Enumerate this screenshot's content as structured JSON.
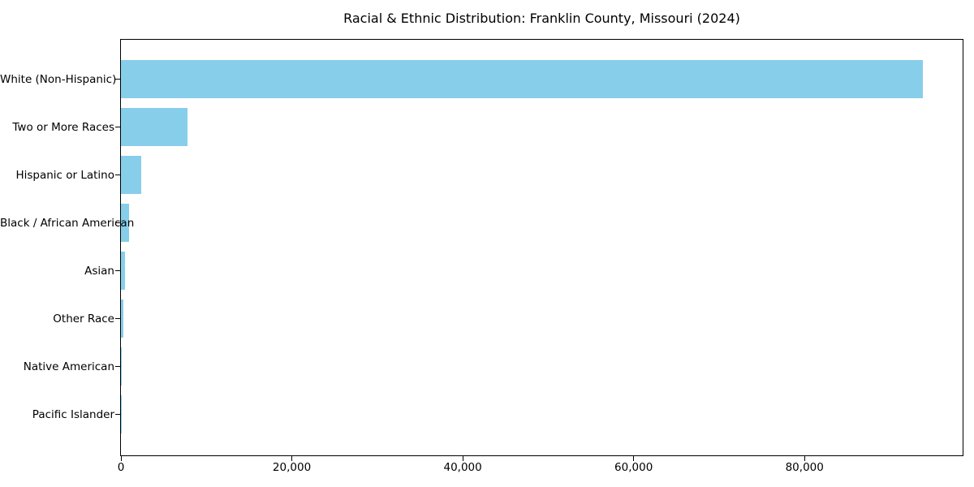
{
  "figure": {
    "background": "#ffffff"
  },
  "chart_data": {
    "type": "bar",
    "orientation": "horizontal",
    "title": "Racial & Ethnic Distribution: Franklin County, Missouri (2024)",
    "categories": [
      "White (Non-Hispanic)",
      "Two or More Races",
      "Hispanic or Latino",
      "Black / African American",
      "Asian",
      "Other Race",
      "Native American",
      "Pacific Islander"
    ],
    "values": [
      93800,
      7800,
      2400,
      950,
      500,
      300,
      30,
      10
    ],
    "xlabel": "",
    "ylabel": "",
    "xlim": [
      0,
      98500
    ],
    "x_ticks": [
      0,
      20000,
      40000,
      60000,
      80000
    ],
    "x_tick_labels": [
      "0",
      "20,000",
      "40,000",
      "60,000",
      "80,000"
    ],
    "bar_color": "#87CEEB",
    "axis_color": "#000000",
    "text_color": "#000000",
    "grid": false,
    "legend_position": "none"
  }
}
